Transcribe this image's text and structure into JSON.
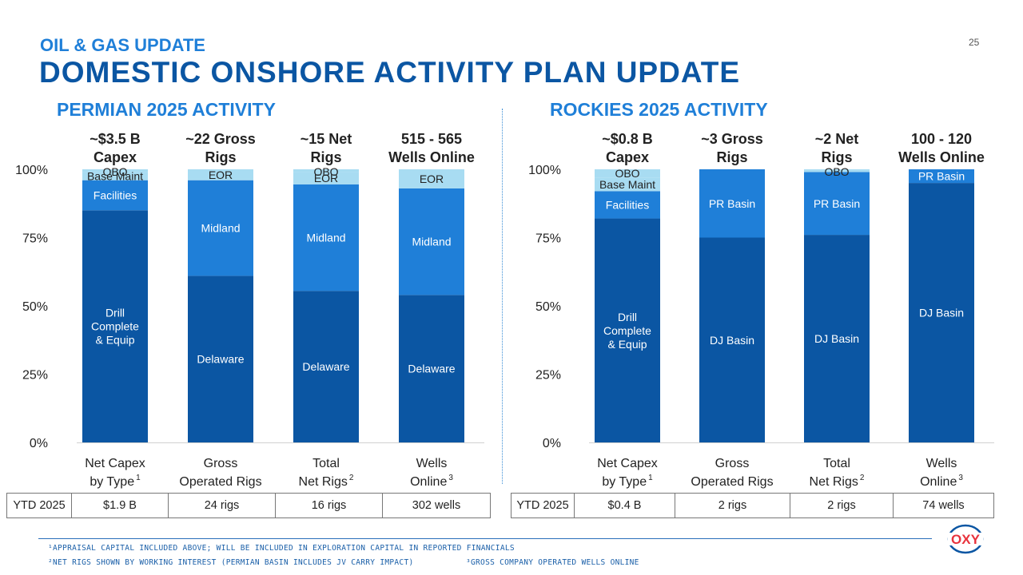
{
  "header": {
    "kicker": "OIL & GAS UPDATE",
    "title": "DOMESTIC ONSHORE ACTIVITY PLAN UPDATE",
    "page_number": "25"
  },
  "colors": {
    "dark": "#0b56a3",
    "mid": "#1f7fd8",
    "light": "#a8dcf2",
    "title_blue": "#1f7fd8",
    "logo_red": "#e8323c"
  },
  "chart_data": [
    {
      "type": "bar",
      "stacked": true,
      "title": "PERMIAN 2025 ACTIVITY",
      "ylim": [
        0,
        100
      ],
      "y_ticks": [
        "0%",
        "25%",
        "50%",
        "75%",
        "100%"
      ],
      "grid": false,
      "bars": [
        {
          "header": [
            "~$3.5 B",
            "Capex"
          ],
          "category": [
            "Net Capex",
            "by Type"
          ],
          "sup": "1",
          "segments": [
            {
              "label": "Drill Complete & Equip",
              "lines": [
                "Drill",
                "Complete",
                "& Equip"
              ],
              "value": 85,
              "shade": "dark"
            },
            {
              "label": "Facilities",
              "lines": [
                "Facilities"
              ],
              "value": 11,
              "shade": "mid"
            },
            {
              "label": "Base Maint",
              "lines": [
                "Base Maint"
              ],
              "value": 3,
              "shade": "light"
            },
            {
              "label": "OBO",
              "lines": [
                "OBO"
              ],
              "value": 1,
              "shade": "light"
            }
          ]
        },
        {
          "header": [
            "~22 Gross",
            "Rigs"
          ],
          "category": [
            "Gross",
            "Operated Rigs"
          ],
          "sup": "",
          "segments": [
            {
              "label": "Delaware",
              "lines": [
                "Delaware"
              ],
              "value": 61,
              "shade": "dark"
            },
            {
              "label": "Midland",
              "lines": [
                "Midland"
              ],
              "value": 35,
              "shade": "mid"
            },
            {
              "label": "EOR",
              "lines": [
                "EOR"
              ],
              "value": 4,
              "shade": "light"
            }
          ]
        },
        {
          "header": [
            "~15 Net",
            "Rigs"
          ],
          "category": [
            "Total",
            "Net Rigs"
          ],
          "sup": "2",
          "segments": [
            {
              "label": "Delaware",
              "lines": [
                "Delaware"
              ],
              "value": 55.5,
              "shade": "dark"
            },
            {
              "label": "Midland",
              "lines": [
                "Midland"
              ],
              "value": 39,
              "shade": "mid"
            },
            {
              "label": "EOR",
              "lines": [
                "EOR"
              ],
              "value": 4.5,
              "shade": "light"
            },
            {
              "label": "OBO",
              "lines": [
                "OBO"
              ],
              "value": 1,
              "shade": "light"
            }
          ]
        },
        {
          "header": [
            "515 - 565",
            "Wells Online"
          ],
          "category": [
            "Wells",
            "Online"
          ],
          "sup": "3",
          "segments": [
            {
              "label": "Delaware",
              "lines": [
                "Delaware"
              ],
              "value": 54,
              "shade": "dark"
            },
            {
              "label": "Midland",
              "lines": [
                "Midland"
              ],
              "value": 39,
              "shade": "mid"
            },
            {
              "label": "EOR",
              "lines": [
                "EOR"
              ],
              "value": 7,
              "shade": "light"
            }
          ]
        }
      ],
      "ytd": {
        "label": "YTD 2025",
        "values": [
          "$1.9 B",
          "24 rigs",
          "16 rigs",
          "302 wells"
        ]
      }
    },
    {
      "type": "bar",
      "stacked": true,
      "title": "ROCKIES 2025 ACTIVITY",
      "ylim": [
        0,
        100
      ],
      "y_ticks": [
        "0%",
        "25%",
        "50%",
        "75%",
        "100%"
      ],
      "grid": false,
      "bars": [
        {
          "header": [
            "~$0.8 B",
            "Capex"
          ],
          "category": [
            "Net Capex",
            "by Type"
          ],
          "sup": "1",
          "segments": [
            {
              "label": "Drill Complete & Equip",
              "lines": [
                "Drill",
                "Complete",
                "& Equip"
              ],
              "value": 82,
              "shade": "dark"
            },
            {
              "label": "Facilities",
              "lines": [
                "Facilities"
              ],
              "value": 10,
              "shade": "mid"
            },
            {
              "label": "Base Maint",
              "lines": [
                "Base Maint"
              ],
              "value": 5,
              "shade": "light"
            },
            {
              "label": "OBO",
              "lines": [
                "OBO"
              ],
              "value": 3,
              "shade": "light"
            }
          ]
        },
        {
          "header": [
            "~3 Gross",
            "Rigs"
          ],
          "category": [
            "Gross",
            "Operated Rigs"
          ],
          "sup": "",
          "segments": [
            {
              "label": "DJ Basin",
              "lines": [
                "DJ Basin"
              ],
              "value": 75,
              "shade": "dark"
            },
            {
              "label": "PR Basin",
              "lines": [
                "PR Basin"
              ],
              "value": 25,
              "shade": "mid"
            }
          ]
        },
        {
          "header": [
            "~2 Net",
            "Rigs"
          ],
          "category": [
            "Total",
            "Net Rigs"
          ],
          "sup": "2",
          "segments": [
            {
              "label": "DJ Basin",
              "lines": [
                "DJ Basin"
              ],
              "value": 76,
              "shade": "dark"
            },
            {
              "label": "PR Basin",
              "lines": [
                "PR Basin"
              ],
              "value": 23,
              "shade": "mid"
            },
            {
              "label": "OBO",
              "lines": [
                "OBO"
              ],
              "value": 1,
              "shade": "light"
            }
          ]
        },
        {
          "header": [
            "100 - 120",
            "Wells Online"
          ],
          "category": [
            "Wells",
            "Online"
          ],
          "sup": "3",
          "segments": [
            {
              "label": "DJ Basin",
              "lines": [
                "DJ Basin"
              ],
              "value": 95,
              "shade": "dark"
            },
            {
              "label": "PR Basin",
              "lines": [
                "PR Basin"
              ],
              "value": 5,
              "shade": "mid"
            }
          ]
        }
      ],
      "ytd": {
        "label": "YTD 2025",
        "values": [
          "$0.4 B",
          "2 rigs",
          "2 rigs",
          "74 wells"
        ]
      }
    }
  ],
  "footnotes": {
    "note1": "¹APPRAISAL CAPITAL INCLUDED ABOVE; WILL BE INCLUDED IN EXPLORATION CAPITAL IN REPORTED FINANCIALS",
    "note2": "²NET RIGS SHOWN BY WORKING INTEREST (PERMIAN BASIN INCLUDES JV CARRY IMPACT)",
    "note3": "³GROSS COMPANY OPERATED WELLS ONLINE"
  },
  "logo": {
    "text": "OXY",
    "icon": "oxy-logo-icon"
  }
}
